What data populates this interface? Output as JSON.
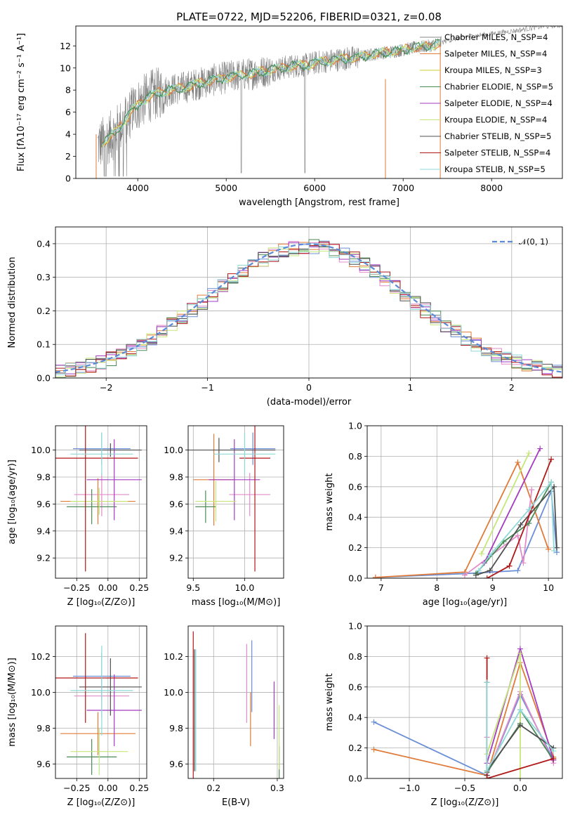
{
  "figure": {
    "title": "PLATE=0722, MJD=52206, FIBERID=0321, z=0.08"
  },
  "colors": {
    "spectrum": "#808080",
    "grid": "#b0b0b0",
    "models": [
      "#6b8fd6",
      "#e07b39",
      "#e38bc8",
      "#4a8a55",
      "#a43bc0",
      "#c6e67a",
      "#505050",
      "#b01818",
      "#8fd8d8"
    ],
    "models_extra": [
      "#888888",
      "#cccc33"
    ]
  },
  "chart_data": [
    {
      "id": "spectrum",
      "type": "line",
      "title": "PLATE=0722, MJD=52206, FIBERID=0321, z=0.08",
      "xlabel": "wavelength [Angstrom, rest frame]",
      "ylabel": "Flux [fλ10⁻¹⁷ erg cm⁻² s⁻¹ A⁻¹]",
      "xlim": [
        3300,
        8800
      ],
      "ylim": [
        0,
        13.8
      ],
      "xticks": [
        4000,
        5000,
        6000,
        7000,
        8000
      ],
      "yticks": [
        0,
        2,
        4,
        6,
        8,
        10,
        12
      ],
      "grid": false,
      "legend_position": "right",
      "legend": [
        "Chabrier MILES, N_SSP=4",
        "Salpeter MILES, N_SSP=4",
        "Kroupa MILES, N_SSP=3",
        "Chabrier ELODIE, N_SSP=5",
        "Salpeter ELODIE, N_SSP=4",
        "Kroupa ELODIE, N_SSP=4",
        "Chabrier STELIB, N_SSP=5",
        "Salpeter STELIB, N_SSP=4",
        "Kroupa STELIB, N_SSP=5"
      ],
      "legend_color_index": [
        9,
        1,
        10,
        3,
        4,
        5,
        6,
        7,
        8
      ],
      "continuum": {
        "x": [
          3550,
          3650,
          3750,
          3850,
          3950,
          4050,
          4150,
          4300,
          4500,
          4700,
          4900,
          5100,
          5300,
          5500,
          5700,
          5900,
          6100,
          6300,
          6500,
          6700,
          6900,
          7100,
          7300,
          7400,
          7500,
          7700,
          7900,
          8100,
          8300,
          8500,
          8800
        ],
        "y": [
          3.0,
          3.5,
          4.2,
          5.2,
          6.3,
          7.0,
          7.5,
          7.9,
          8.2,
          8.6,
          9.0,
          9.3,
          9.5,
          9.8,
          10.1,
          10.3,
          10.6,
          10.8,
          11.0,
          11.3,
          11.5,
          11.8,
          12.0,
          12.2,
          12.5,
          12.8,
          13.0,
          13.2,
          13.4,
          13.7,
          13.9
        ]
      }
    },
    {
      "id": "residuals",
      "type": "histogram",
      "xlabel": "(data-model)/error",
      "ylabel": "Normed distribution",
      "xlim": [
        -2.5,
        2.5
      ],
      "ylim": [
        0,
        0.45
      ],
      "xticks": [
        -2,
        -1,
        0,
        1,
        2
      ],
      "yticks": [
        0.0,
        0.1,
        0.2,
        0.3,
        0.4
      ],
      "grid": true,
      "legend_position": "top-right",
      "reference_curve_label": "𝒩(0, 1)",
      "bin_edges_start": -2.5,
      "bin_width": 0.1
    },
    {
      "id": "age-vs-Z",
      "type": "errorbar",
      "xlabel": "Z [log₁₀(Z/Z⊙)]",
      "ylabel": "age  [log₁₀(age/yr)]",
      "xlim": [
        -0.42,
        0.31
      ],
      "ylim": [
        9.05,
        10.18
      ],
      "xticks": [
        -0.25,
        0.0,
        0.25
      ],
      "yticks": [
        9.2,
        9.4,
        9.6,
        9.8,
        10.0
      ],
      "grid": true,
      "points": [
        {
          "x": -0.05,
          "xerr": 0.23,
          "y": 10.01,
          "yerr": 0.12,
          "color": 0
        },
        {
          "x": -0.08,
          "xerr": 0.3,
          "y": 9.62,
          "yerr": 0.17,
          "color": 1
        },
        {
          "x": -0.05,
          "xerr": 0.22,
          "y": 9.67,
          "yerr": 0.16,
          "color": 2
        },
        {
          "x": -0.13,
          "xerr": 0.2,
          "y": 9.58,
          "yerr": 0.13,
          "color": 3
        },
        {
          "x": 0.05,
          "xerr": 0.22,
          "y": 9.78,
          "yerr": 0.3,
          "color": 4
        },
        {
          "x": -0.07,
          "xerr": 0.23,
          "y": 9.62,
          "yerr": 0.1,
          "color": 5
        },
        {
          "x": 0.02,
          "xerr": 0.25,
          "y": 10.0,
          "yerr": 0.05,
          "color": 6
        },
        {
          "x": -0.18,
          "xerr": 0.42,
          "y": 9.94,
          "yerr": 0.84,
          "color": 7
        },
        {
          "x": -0.05,
          "xerr": 0.25,
          "y": 9.97,
          "yerr": 0.16,
          "color": 8
        }
      ]
    },
    {
      "id": "age-vs-mass",
      "type": "errorbar",
      "xlabel": "mass [log₁₀(M/M⊙)]",
      "ylabel": "",
      "xlim": [
        9.45,
        10.38
      ],
      "ylim": [
        9.05,
        10.18
      ],
      "xticks": [
        9.5,
        10.0
      ],
      "yticks": [
        9.2,
        9.4,
        9.6,
        9.8,
        10.0
      ],
      "grid": true,
      "points": [
        {
          "x": 10.08,
          "xerr": 0.22,
          "y": 10.01,
          "yerr": 0.12,
          "color": 0
        },
        {
          "x": 9.7,
          "xerr": 0.2,
          "y": 9.78,
          "yerr": 0.34,
          "color": 1
        },
        {
          "x": 10.05,
          "xerr": 0.2,
          "y": 9.67,
          "yerr": 0.16,
          "color": 2
        },
        {
          "x": 9.62,
          "xerr": 0.1,
          "y": 9.58,
          "yerr": 0.12,
          "color": 3
        },
        {
          "x": 9.9,
          "xerr": 0.25,
          "y": 9.78,
          "yerr": 0.3,
          "color": 4
        },
        {
          "x": 9.72,
          "xerr": 0.2,
          "y": 9.62,
          "yerr": 0.15,
          "color": 5
        },
        {
          "x": 9.75,
          "xerr": 0.55,
          "y": 10.0,
          "yerr": 0.09,
          "color": 6
        },
        {
          "x": 10.1,
          "xerr": 0.15,
          "y": 9.94,
          "yerr": 0.84,
          "color": 7
        },
        {
          "x": 10.0,
          "xerr": 0.3,
          "y": 9.97,
          "yerr": 0.16,
          "color": 8
        }
      ]
    },
    {
      "id": "weight-vs-age",
      "type": "line",
      "xlabel": "age  [log₁₀(age/yr)]",
      "ylabel": "mass weight",
      "xlim": [
        6.75,
        10.25
      ],
      "ylim": [
        0,
        1.0
      ],
      "xticks": [
        7,
        8,
        9,
        10
      ],
      "yticks": [
        0.0,
        0.2,
        0.4,
        0.6,
        0.8,
        1.0
      ],
      "grid": true,
      "series": [
        {
          "color": 0,
          "x": [
            6.9,
            8.5,
            9.45,
            10.05,
            10.15
          ],
          "y": [
            0.005,
            0.03,
            0.05,
            0.57,
            0.17
          ]
        },
        {
          "color": 1,
          "x": [
            6.9,
            8.5,
            9.45,
            10.0
          ],
          "y": [
            0.005,
            0.04,
            0.76,
            0.19
          ]
        },
        {
          "color": 2,
          "x": [
            8.5,
            9.45,
            9.55,
            9.7
          ],
          "y": [
            0.02,
            0.28,
            0.1,
            0.58
          ]
        },
        {
          "color": 3,
          "x": [
            8.7,
            9.2,
            9.65,
            10.05
          ],
          "y": [
            0.03,
            0.24,
            0.36,
            0.63
          ]
        },
        {
          "color": 4,
          "x": [
            8.85,
            9.85
          ],
          "y": [
            0.1,
            0.85
          ]
        },
        {
          "color": 5,
          "x": [
            8.8,
            9.65
          ],
          "y": [
            0.16,
            0.82
          ]
        },
        {
          "color": 6,
          "x": [
            8.7,
            8.95,
            9.5,
            10.1,
            10.15
          ],
          "y": [
            0.02,
            0.05,
            0.35,
            0.6,
            0.2
          ]
        },
        {
          "color": 7,
          "x": [
            8.9,
            9.3,
            10.05
          ],
          "y": [
            0.0,
            0.08,
            0.78
          ]
        },
        {
          "color": 8,
          "x": [
            8.75,
            8.95,
            9.65,
            10.05,
            10.1
          ],
          "y": [
            0.05,
            0.15,
            0.45,
            0.63,
            0.18
          ]
        }
      ]
    },
    {
      "id": "mass-vs-Z",
      "type": "errorbar",
      "xlabel": "Z [log₁₀(Z/Z⊙)]",
      "ylabel": "mass [log₁₀(M/M⊙)]",
      "xlim": [
        -0.42,
        0.31
      ],
      "ylim": [
        9.52,
        10.37
      ],
      "xticks": [
        -0.25,
        0.0,
        0.25
      ],
      "yticks": [
        9.6,
        9.8,
        10.0,
        10.2
      ],
      "grid": true,
      "points": [
        {
          "x": -0.05,
          "xerr": 0.23,
          "y": 10.09,
          "yerr": 0.13,
          "color": 0
        },
        {
          "x": -0.08,
          "xerr": 0.3,
          "y": 9.77,
          "yerr": 0.12,
          "color": 1
        },
        {
          "x": -0.05,
          "xerr": 0.22,
          "y": 9.98,
          "yerr": 0.12,
          "color": 2
        },
        {
          "x": -0.13,
          "xerr": 0.2,
          "y": 9.64,
          "yerr": 0.1,
          "color": 3
        },
        {
          "x": 0.05,
          "xerr": 0.22,
          "y": 9.9,
          "yerr": 0.2,
          "color": 4
        },
        {
          "x": -0.07,
          "xerr": 0.23,
          "y": 9.67,
          "yerr": 0.13,
          "color": 5
        },
        {
          "x": 0.02,
          "xerr": 0.25,
          "y": 10.03,
          "yerr": 0.16,
          "color": 6
        },
        {
          "x": -0.18,
          "xerr": 0.42,
          "y": 10.08,
          "yerr": 0.25,
          "color": 7
        },
        {
          "x": -0.05,
          "xerr": 0.25,
          "y": 10.01,
          "yerr": 0.25,
          "color": 8
        }
      ]
    },
    {
      "id": "mass-vs-EBV",
      "type": "errorbar",
      "xlabel": "E(B-V)",
      "ylabel": "",
      "xlim": [
        0.16,
        0.31
      ],
      "ylim": [
        9.52,
        10.37
      ],
      "xticks": [
        0.2,
        0.3
      ],
      "yticks": [
        9.6,
        9.8,
        10.0,
        10.2
      ],
      "grid": true,
      "points": [
        {
          "x": 0.26,
          "xerr": 0.0,
          "y": 10.09,
          "yerr": 0.2,
          "color": 0
        },
        {
          "x": 0.258,
          "xerr": 0.0,
          "y": 9.85,
          "yerr": 0.15,
          "color": 1
        },
        {
          "x": 0.252,
          "xerr": 0.0,
          "y": 10.05,
          "yerr": 0.22,
          "color": 2
        },
        {
          "x": 0.303,
          "xerr": 0.0,
          "y": 9.55,
          "yerr": 0.15,
          "color": 3
        },
        {
          "x": 0.295,
          "xerr": 0.0,
          "y": 9.9,
          "yerr": 0.16,
          "color": 4
        },
        {
          "x": 0.303,
          "xerr": 0.0,
          "y": 9.75,
          "yerr": 0.18,
          "color": 5
        },
        {
          "x": 0.17,
          "xerr": 0.0,
          "y": 9.9,
          "yerr": 0.34,
          "color": 6
        },
        {
          "x": 0.168,
          "xerr": 0.0,
          "y": 9.9,
          "yerr": 0.44,
          "color": 7
        },
        {
          "x": 0.172,
          "xerr": 0.0,
          "y": 9.9,
          "yerr": 0.34,
          "color": 8
        }
      ]
    },
    {
      "id": "weight-vs-Z",
      "type": "line",
      "xlabel": "Z [log₁₀(Z/Z⊙)]",
      "ylabel": "mass weight",
      "xlim": [
        -1.38,
        0.38
      ],
      "ylim": [
        0,
        1.0
      ],
      "xticks": [
        -1.0,
        -0.5,
        0.0
      ],
      "yticks": [
        0.0,
        0.2,
        0.4,
        0.6,
        0.8,
        1.0
      ],
      "grid": true,
      "series": [
        {
          "color": 0,
          "x": [
            -1.32,
            -0.3,
            0.0,
            0.3
          ],
          "y": [
            0.37,
            0.02,
            0.55,
            0.12
          ]
        },
        {
          "color": 1,
          "x": [
            -1.32,
            -0.3,
            0.0,
            0.3
          ],
          "y": [
            0.19,
            0.02,
            0.76,
            0.14
          ]
        },
        {
          "color": 2,
          "x": [
            -0.3,
            -0.3,
            0.0,
            0.3
          ],
          "y": [
            0.27,
            0.02,
            0.57,
            0.1
          ]
        },
        {
          "color": 3,
          "x": [
            -0.3,
            -0.3,
            0.0,
            0.0,
            0.3
          ],
          "y": [
            0.63,
            0.04,
            0.36,
            0.45,
            0.12
          ]
        },
        {
          "color": 4,
          "x": [
            -0.3,
            0.0,
            0.3
          ],
          "y": [
            0.1,
            0.85,
            0.12
          ]
        },
        {
          "color": 5,
          "x": [
            -0.3,
            0.0,
            0.0
          ],
          "y": [
            0.16,
            0.82,
            0.0
          ]
        },
        {
          "color": 6,
          "x": [
            -0.3,
            -0.3,
            0.0,
            0.3
          ],
          "y": [
            0.02,
            0.05,
            0.35,
            0.2
          ]
        },
        {
          "color": 7,
          "x": [
            -0.3,
            -0.3,
            0.3
          ],
          "y": [
            0.79,
            0.0,
            0.13
          ]
        },
        {
          "color": 8,
          "x": [
            -0.3,
            -0.3,
            0.0,
            0.3
          ],
          "y": [
            0.63,
            0.05,
            0.45,
            0.18
          ]
        }
      ]
    }
  ]
}
